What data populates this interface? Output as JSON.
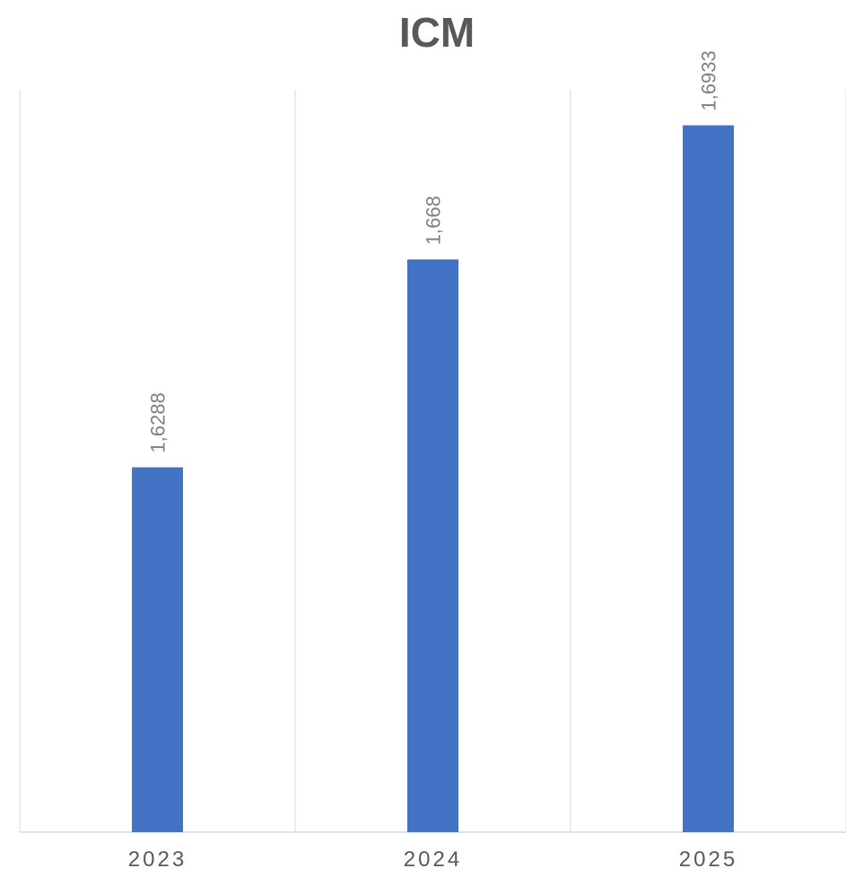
{
  "chart_data": {
    "type": "bar",
    "title": "ICM",
    "categories": [
      "2023",
      "2024",
      "2025"
    ],
    "values": [
      1.6288,
      1.668,
      1.6933
    ],
    "data_labels": [
      "1,6288",
      "1,668",
      "1,6933"
    ],
    "ylim": [
      1.56,
      1.7
    ],
    "grid": "vertical",
    "legend": "none",
    "bar_color": "#4472C4",
    "gridline_color": "#D9D9D9",
    "text_color": "#595959",
    "label_color": "#7F7F7F"
  }
}
